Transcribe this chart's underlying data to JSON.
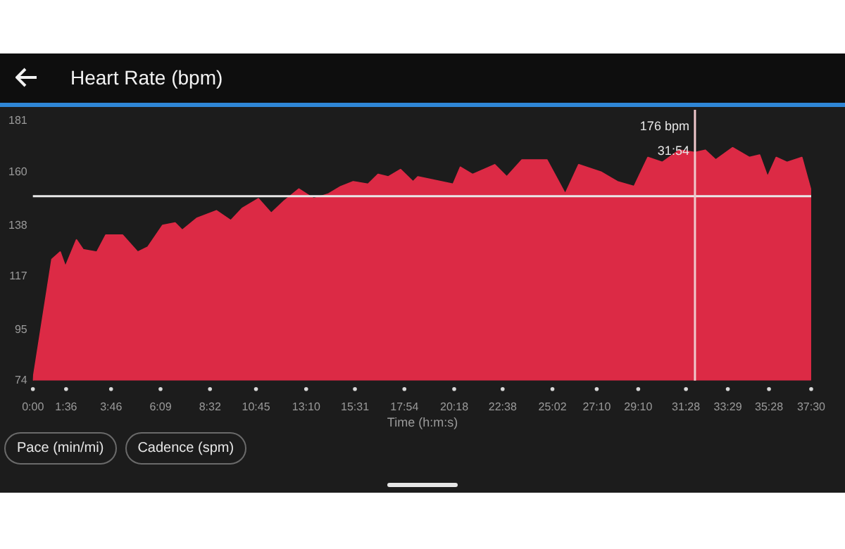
{
  "chart_data": {
    "type": "area",
    "title": "Heart Rate (bpm)",
    "xlabel": "Time (h:m:s)",
    "x": [
      0,
      55,
      79,
      94,
      126,
      145,
      185,
      211,
      259,
      303,
      332,
      375,
      411,
      432,
      475,
      531,
      572,
      605,
      652,
      689,
      726,
      769,
      812,
      855,
      890,
      926,
      969,
      998,
      1027,
      1063,
      1099,
      1113,
      1215,
      1236,
      1271,
      1335,
      1370,
      1414,
      1486,
      1539,
      1578,
      1642,
      1690,
      1738,
      1778,
      1820,
      1869,
      1914,
      1944,
      1974,
      2023,
      2071,
      2101,
      2124,
      2149,
      2180,
      2223,
      2250
    ],
    "series": [
      {
        "color": "#dc2a45",
        "values": [
          74,
          124,
          127,
          121,
          132,
          128,
          127,
          134,
          134,
          127,
          129,
          138,
          139,
          136,
          141,
          144,
          140,
          145,
          149,
          143,
          148,
          153,
          149,
          151,
          154,
          156,
          155,
          159,
          158,
          161,
          156,
          158,
          155,
          162,
          159,
          163,
          158,
          165,
          165,
          151,
          163,
          160,
          156,
          154,
          166,
          164,
          169,
          168,
          169,
          165,
          170,
          166,
          167,
          158,
          166,
          164,
          166,
          152
        ]
      }
    ],
    "xlim": [
      0,
      2250
    ],
    "xticks": [
      {
        "value": 0,
        "label": "0:00"
      },
      {
        "value": 96,
        "label": "1:36"
      },
      {
        "value": 226,
        "label": "3:46"
      },
      {
        "value": 369,
        "label": "6:09"
      },
      {
        "value": 512,
        "label": "8:32"
      },
      {
        "value": 645,
        "label": "10:45"
      },
      {
        "value": 790,
        "label": "13:10"
      },
      {
        "value": 931,
        "label": "15:31"
      },
      {
        "value": 1074,
        "label": "17:54"
      },
      {
        "value": 1218,
        "label": "20:18"
      },
      {
        "value": 1358,
        "label": "22:38"
      },
      {
        "value": 1502,
        "label": "25:02"
      },
      {
        "value": 1630,
        "label": "27:10"
      },
      {
        "value": 1750,
        "label": "29:10"
      },
      {
        "value": 1888,
        "label": "31:28"
      },
      {
        "value": 2009,
        "label": "33:29"
      },
      {
        "value": 2128,
        "label": "35:28"
      },
      {
        "value": 2250,
        "label": "37:30"
      }
    ],
    "ylim": [
      74,
      181
    ],
    "yticks": [
      74,
      95,
      117,
      138,
      160,
      181
    ],
    "grid": false,
    "legend": false,
    "ref_lines": [
      {
        "axis": "y",
        "value": 150,
        "color": "#e8e8e8"
      },
      {
        "axis": "x",
        "value": 1914,
        "color": "#f0c8cc"
      }
    ],
    "annotations": [
      {
        "text": "176 bpm",
        "x": 1914,
        "y": 176
      },
      {
        "text": "31:54",
        "x": 1914
      },
      "Pace (min/mi)",
      "Cadence (spm)"
    ]
  }
}
